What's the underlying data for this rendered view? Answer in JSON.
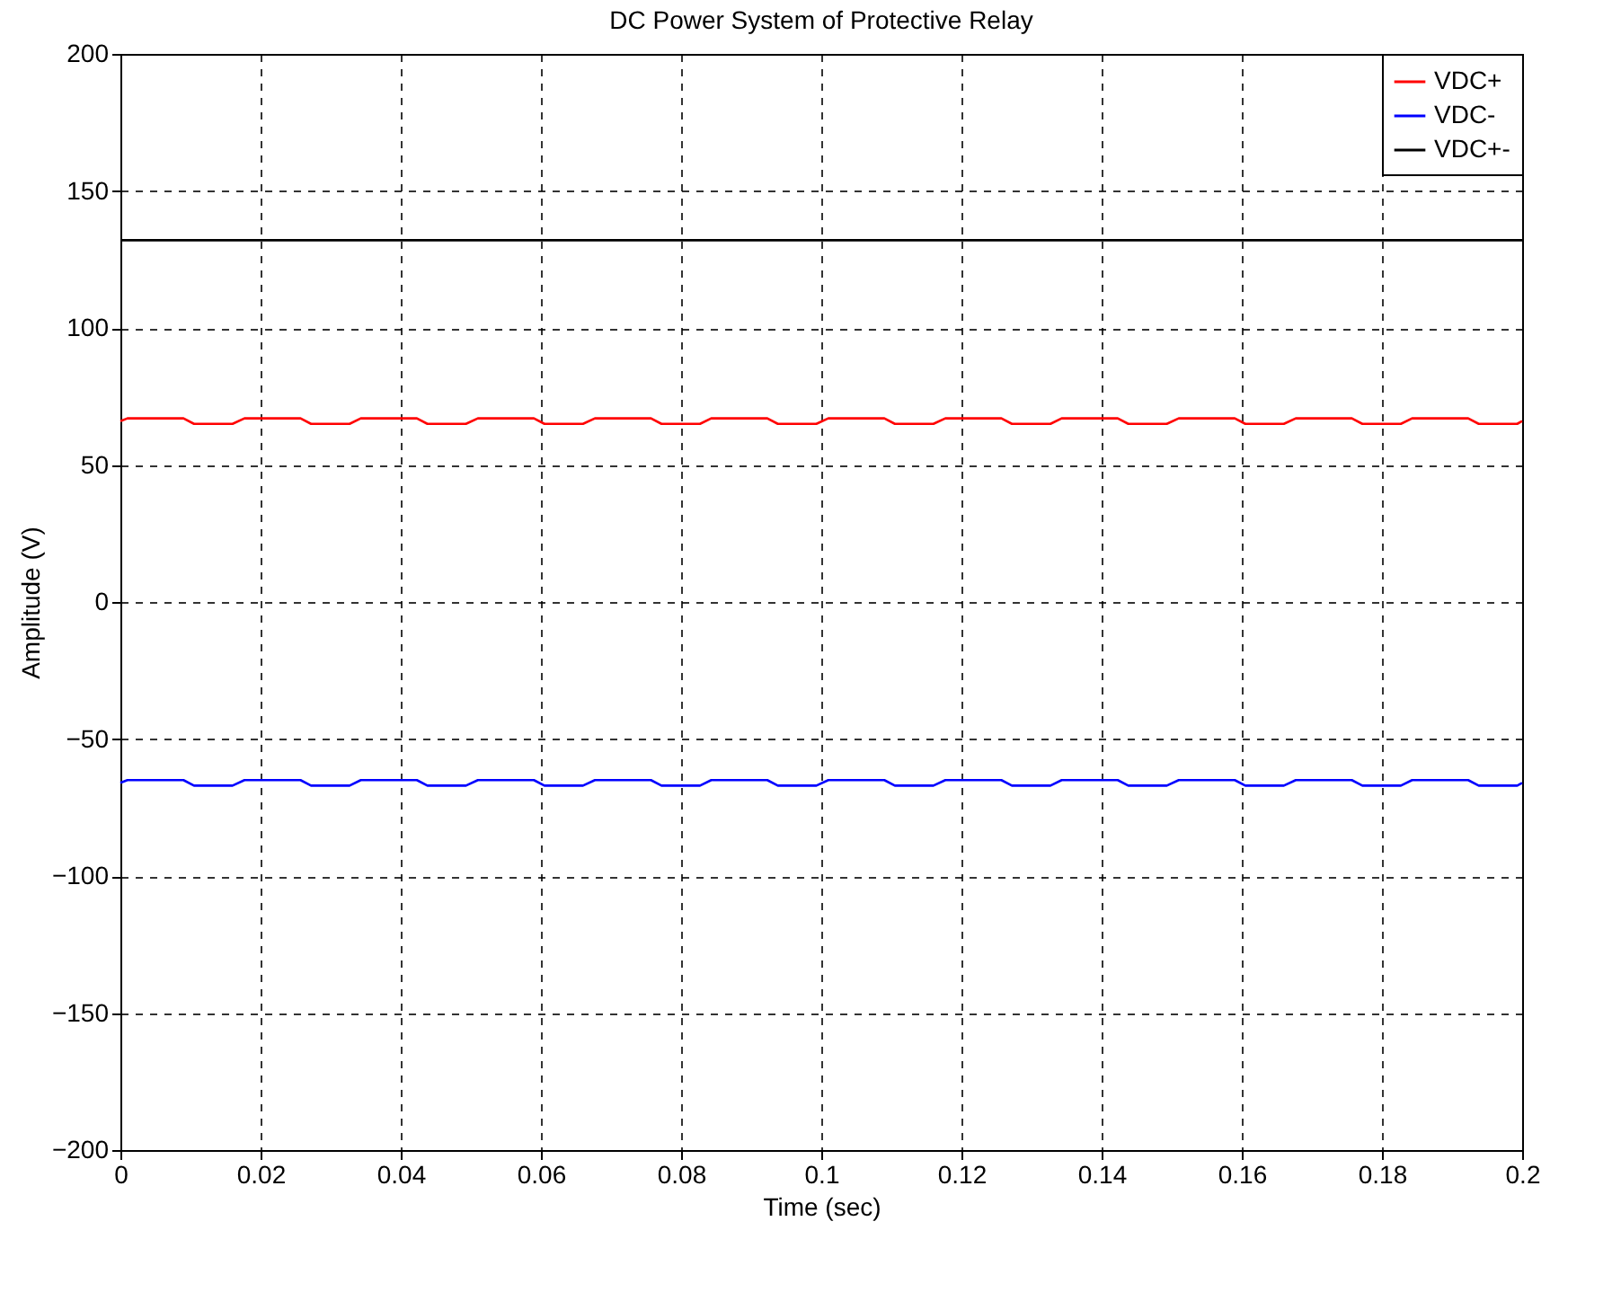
{
  "chart_data": {
    "type": "line",
    "title": "DC Power System of Protective Relay",
    "xlabel": "Time (sec)",
    "ylabel": "Amplitude (V)",
    "x": [
      0,
      0.001,
      0.009,
      0.0105,
      0.016,
      0.0177,
      0.0257,
      0.0272,
      0.0327,
      0.0343,
      0.0423,
      0.0438,
      0.0493,
      0.051,
      0.059,
      0.0605,
      0.066,
      0.0677,
      0.0757,
      0.0772,
      0.0827,
      0.0843,
      0.0923,
      0.0938,
      0.0993,
      0.101,
      0.109,
      0.1105,
      0.116,
      0.1177,
      0.1257,
      0.1272,
      0.1327,
      0.1343,
      0.1423,
      0.1438,
      0.1493,
      0.151,
      0.159,
      0.1605,
      0.166,
      0.1677,
      0.1757,
      0.1772,
      0.1827,
      0.1843,
      0.1923,
      0.1938,
      0.1993,
      0.2
    ],
    "series": [
      {
        "name": "VDC+",
        "color": "#ff0000",
        "values": [
          66,
          67,
          67,
          65,
          65,
          67,
          67,
          65,
          65,
          67,
          67,
          65,
          65,
          67,
          67,
          65,
          65,
          67,
          67,
          65,
          65,
          67,
          67,
          65,
          65,
          67,
          67,
          65,
          65,
          67,
          67,
          65,
          65,
          67,
          67,
          65,
          65,
          67,
          67,
          65,
          65,
          67,
          67,
          65,
          65,
          67,
          67,
          65,
          65,
          66
        ]
      },
      {
        "name": "VDC-",
        "color": "#0000ff",
        "values": [
          -66,
          -65,
          -65,
          -67,
          -67,
          -65,
          -65,
          -67,
          -67,
          -65,
          -65,
          -67,
          -67,
          -65,
          -65,
          -67,
          -67,
          -65,
          -65,
          -67,
          -67,
          -65,
          -65,
          -67,
          -67,
          -65,
          -65,
          -67,
          -67,
          -65,
          -65,
          -67,
          -67,
          -65,
          -65,
          -67,
          -67,
          -65,
          -65,
          -67,
          -67,
          -65,
          -65,
          -67,
          -67,
          -65,
          -65,
          -67,
          -67,
          -66
        ]
      },
      {
        "name": "VDC+-",
        "color": "#000000",
        "x": [
          0,
          0.2
        ],
        "values": [
          132,
          132
        ]
      }
    ],
    "xlim": [
      0,
      0.2
    ],
    "xticks": [
      0,
      0.02,
      0.04,
      0.06,
      0.08,
      0.1,
      0.12,
      0.14,
      0.16,
      0.18,
      0.2
    ],
    "ylim": [
      -200,
      200
    ],
    "yticks": [
      -200,
      -150,
      -100,
      -50,
      0,
      50,
      100,
      150,
      200
    ],
    "grid": true,
    "legend": "top right",
    "line_style": "solid",
    "marker": "none"
  }
}
